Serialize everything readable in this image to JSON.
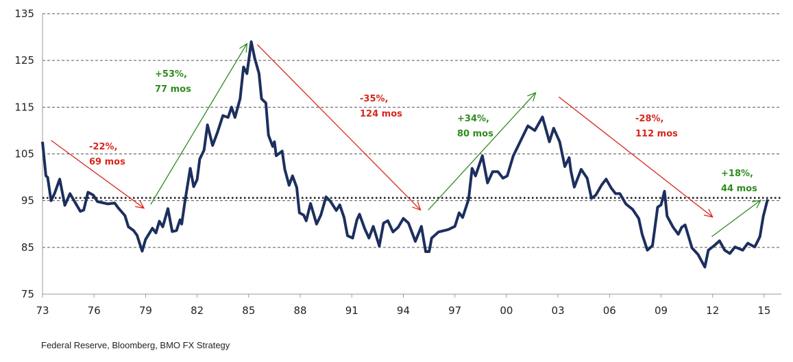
{
  "chart_data": {
    "type": "line",
    "title": "",
    "xlabel": "",
    "ylabel": "",
    "xlim": [
      1973,
      2016
    ],
    "ylim": [
      75,
      135
    ],
    "grid": "horizontal dashed",
    "yticks": [
      75,
      85,
      95,
      105,
      115,
      125,
      135
    ],
    "xticks": [
      {
        "year": 1973,
        "label": "73"
      },
      {
        "year": 1976,
        "label": "76"
      },
      {
        "year": 1979,
        "label": "79"
      },
      {
        "year": 1982,
        "label": "82"
      },
      {
        "year": 1985,
        "label": "85"
      },
      {
        "year": 1988,
        "label": "88"
      },
      {
        "year": 1991,
        "label": "91"
      },
      {
        "year": 1994,
        "label": "94"
      },
      {
        "year": 1997,
        "label": "97"
      },
      {
        "year": 2000,
        "label": "00"
      },
      {
        "year": 2003,
        "label": "03"
      },
      {
        "year": 2006,
        "label": "06"
      },
      {
        "year": 2009,
        "label": "09"
      },
      {
        "year": 2012,
        "label": "12"
      },
      {
        "year": 2015,
        "label": "15"
      }
    ],
    "reference_line": {
      "value": 95.6,
      "style": "dotted",
      "color": "#1a1a1a"
    },
    "series": [
      {
        "color": "#1c2f5e",
        "points": [
          [
            1973.0,
            107.6
          ],
          [
            1973.2,
            100.3
          ],
          [
            1973.3,
            100
          ],
          [
            1973.5,
            95
          ],
          [
            1973.7,
            96.5
          ],
          [
            1974.0,
            99.6
          ],
          [
            1974.3,
            94
          ],
          [
            1974.6,
            96.5
          ],
          [
            1975.2,
            92.7
          ],
          [
            1975.4,
            93
          ],
          [
            1975.65,
            96.8
          ],
          [
            1975.95,
            96.2
          ],
          [
            1976.2,
            94.8
          ],
          [
            1976.8,
            94.3
          ],
          [
            1977.2,
            94.5
          ],
          [
            1977.4,
            93.5
          ],
          [
            1977.8,
            91.8
          ],
          [
            1978.0,
            89.4
          ],
          [
            1978.3,
            88.6
          ],
          [
            1978.5,
            87.6
          ],
          [
            1978.8,
            84.2
          ],
          [
            1979.0,
            86.7
          ],
          [
            1979.4,
            89.1
          ],
          [
            1979.6,
            88.1
          ],
          [
            1979.8,
            90.6
          ],
          [
            1980.0,
            89.4
          ],
          [
            1980.3,
            93.3
          ],
          [
            1980.55,
            88.4
          ],
          [
            1980.8,
            88.6
          ],
          [
            1981.0,
            90.9
          ],
          [
            1981.1,
            90
          ],
          [
            1981.3,
            95.1
          ],
          [
            1981.6,
            101.9
          ],
          [
            1981.8,
            98
          ],
          [
            1982.0,
            99.5
          ],
          [
            1982.15,
            103.9
          ],
          [
            1982.4,
            105.8
          ],
          [
            1982.6,
            111.2
          ],
          [
            1982.9,
            106.8
          ],
          [
            1983.2,
            109.8
          ],
          [
            1983.5,
            113.2
          ],
          [
            1983.8,
            112.8
          ],
          [
            1984.0,
            115
          ],
          [
            1984.2,
            112.8
          ],
          [
            1984.5,
            116.8
          ],
          [
            1984.7,
            123.6
          ],
          [
            1984.9,
            122.2
          ],
          [
            1985.15,
            129
          ],
          [
            1985.35,
            125.5
          ],
          [
            1985.6,
            122.2
          ],
          [
            1985.75,
            116.8
          ],
          [
            1986.0,
            115.9
          ],
          [
            1986.15,
            109
          ],
          [
            1986.4,
            106.6
          ],
          [
            1986.5,
            107.6
          ],
          [
            1986.6,
            104.6
          ],
          [
            1986.95,
            105.6
          ],
          [
            1987.1,
            101.7
          ],
          [
            1987.35,
            98.3
          ],
          [
            1987.55,
            100.3
          ],
          [
            1987.8,
            97.8
          ],
          [
            1987.95,
            92.4
          ],
          [
            1988.2,
            91.9
          ],
          [
            1988.35,
            90.7
          ],
          [
            1988.6,
            94.4
          ],
          [
            1988.95,
            90
          ],
          [
            1989.2,
            91.9
          ],
          [
            1989.5,
            95.8
          ],
          [
            1989.75,
            94.9
          ],
          [
            1990.1,
            92.9
          ],
          [
            1990.3,
            94.1
          ],
          [
            1990.55,
            91.4
          ],
          [
            1990.75,
            87.5
          ],
          [
            1991.05,
            87
          ],
          [
            1991.3,
            90.9
          ],
          [
            1991.45,
            92.1
          ],
          [
            1991.75,
            89
          ],
          [
            1992.0,
            87
          ],
          [
            1992.25,
            89.5
          ],
          [
            1992.6,
            85.3
          ],
          [
            1992.85,
            90.2
          ],
          [
            1993.1,
            90.7
          ],
          [
            1993.4,
            88.3
          ],
          [
            1993.7,
            89.3
          ],
          [
            1994.0,
            91.2
          ],
          [
            1994.3,
            90.2
          ],
          [
            1994.7,
            86.3
          ],
          [
            1995.05,
            89.5
          ],
          [
            1995.3,
            84.1
          ],
          [
            1995.5,
            84.1
          ],
          [
            1995.65,
            87
          ],
          [
            1996.05,
            88.3
          ],
          [
            1996.6,
            88.8
          ],
          [
            1997.0,
            89.5
          ],
          [
            1997.25,
            92.4
          ],
          [
            1997.45,
            91.4
          ],
          [
            1997.8,
            95.3
          ],
          [
            1998.0,
            101.9
          ],
          [
            1998.2,
            100.3
          ],
          [
            1998.6,
            104.6
          ],
          [
            1998.9,
            98.8
          ],
          [
            1999.2,
            101.2
          ],
          [
            1999.5,
            101.2
          ],
          [
            1999.8,
            99.8
          ],
          [
            2000.05,
            100.3
          ],
          [
            2000.4,
            104.6
          ],
          [
            2000.85,
            108
          ],
          [
            2001.25,
            111
          ],
          [
            2001.65,
            110
          ],
          [
            2002.1,
            112.9
          ],
          [
            2002.5,
            107.6
          ],
          [
            2002.75,
            110.5
          ],
          [
            2003.1,
            107.6
          ],
          [
            2003.4,
            102.3
          ],
          [
            2003.65,
            104.2
          ],
          [
            2003.75,
            101.4
          ],
          [
            2003.95,
            97.9
          ],
          [
            2004.35,
            101.7
          ],
          [
            2004.7,
            99.8
          ],
          [
            2004.95,
            95.5
          ],
          [
            2005.2,
            96.2
          ],
          [
            2005.55,
            98.4
          ],
          [
            2005.8,
            99.6
          ],
          [
            2006.1,
            97.7
          ],
          [
            2006.35,
            96.5
          ],
          [
            2006.6,
            96.5
          ],
          [
            2006.95,
            94.3
          ],
          [
            2007.35,
            93.1
          ],
          [
            2007.7,
            91.2
          ],
          [
            2007.9,
            87.8
          ],
          [
            2008.2,
            84.4
          ],
          [
            2008.5,
            85.4
          ],
          [
            2008.8,
            93.6
          ],
          [
            2009.0,
            94.1
          ],
          [
            2009.2,
            97
          ],
          [
            2009.35,
            91.7
          ],
          [
            2009.7,
            89.3
          ],
          [
            2010.0,
            87.8
          ],
          [
            2010.2,
            89.3
          ],
          [
            2010.4,
            89.8
          ],
          [
            2010.8,
            84.9
          ],
          [
            2011.15,
            83.5
          ],
          [
            2011.55,
            80.8
          ],
          [
            2011.75,
            84.4
          ],
          [
            2012.1,
            85.4
          ],
          [
            2012.4,
            86.4
          ],
          [
            2012.7,
            84.4
          ],
          [
            2013.0,
            83.7
          ],
          [
            2013.3,
            85.1
          ],
          [
            2013.75,
            84.4
          ],
          [
            2014.05,
            85.9
          ],
          [
            2014.45,
            85.1
          ],
          [
            2014.75,
            87.3
          ],
          [
            2014.95,
            91.7
          ],
          [
            2015.2,
            95.3
          ]
        ]
      }
    ],
    "annotations": [
      {
        "line1": "-22%,",
        "line2": "69 mos",
        "color": "#d9261c",
        "arrow": {
          "from": [
            1973.5,
            107.9
          ],
          "to": [
            1978.9,
            93.4
          ]
        }
      },
      {
        "line1": "+53%,",
        "line2": "77 mos",
        "color": "#2e8b1e",
        "arrow": {
          "from": [
            1979.3,
            94.2
          ],
          "to": [
            1984.9,
            128.6
          ]
        }
      },
      {
        "line1": "-35%,",
        "line2": "124 mos",
        "color": "#d9261c",
        "arrow": {
          "from": [
            1985.5,
            128.4
          ],
          "to": [
            1995.0,
            93.0
          ]
        }
      },
      {
        "line1": "+34%,",
        "line2": "80 mos",
        "color": "#2e8b1e",
        "arrow": {
          "from": [
            1995.45,
            93.0
          ],
          "to": [
            2001.7,
            118.1
          ]
        }
      },
      {
        "line1": "-28%,",
        "line2": "112 mos",
        "color": "#d9261c",
        "arrow": {
          "from": [
            2003.05,
            117.2
          ],
          "to": [
            2012.0,
            91.5
          ]
        }
      },
      {
        "line1": "+18%,",
        "line2": "44 mos",
        "color": "#2e8b1e",
        "arrow": {
          "from": [
            2011.95,
            87.3
          ],
          "to": [
            2014.8,
            95.1
          ]
        }
      }
    ]
  },
  "source": "Federal Reserve, Bloomberg, BMO FX Strategy"
}
